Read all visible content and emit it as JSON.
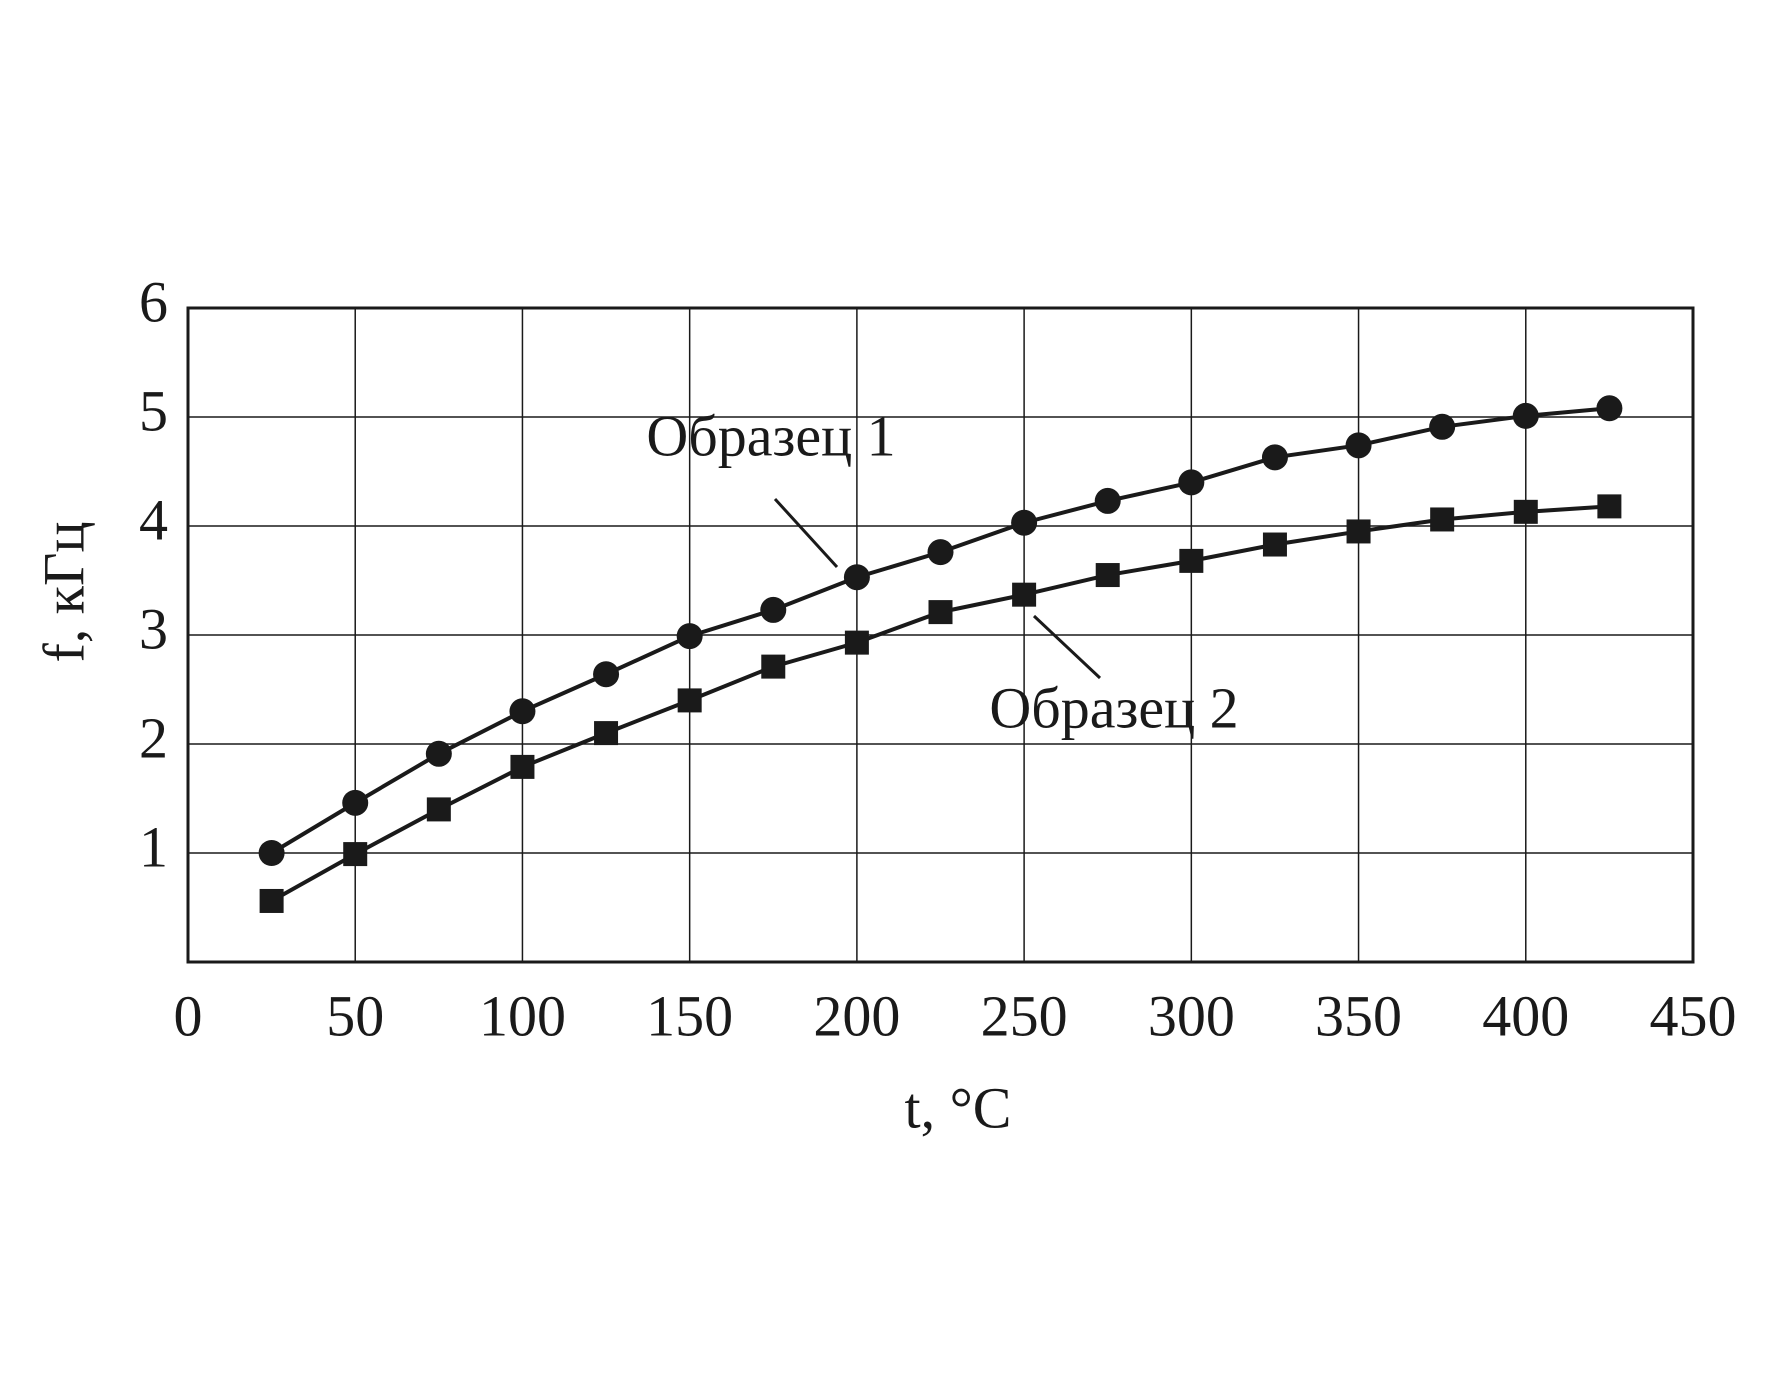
{
  "chart_data": {
    "type": "line",
    "xlabel": "t, °C",
    "ylabel": "f, кГц",
    "x": [
      25,
      50,
      75,
      100,
      125,
      150,
      175,
      200,
      225,
      250,
      275,
      300,
      325,
      350,
      375,
      400,
      425
    ],
    "series": [
      {
        "name": "Образец 1",
        "color": "#1a1a1a",
        "marker": "circle",
        "values": [
          1.0,
          1.46,
          1.91,
          2.3,
          2.64,
          2.99,
          3.23,
          3.53,
          3.76,
          4.03,
          4.23,
          4.4,
          4.63,
          4.74,
          4.91,
          5.01,
          5.08
        ]
      },
      {
        "name": "Образец 2",
        "color": "#1a1a1a",
        "marker": "square",
        "values": [
          0.56,
          0.99,
          1.4,
          1.79,
          2.1,
          2.4,
          2.71,
          2.93,
          3.21,
          3.37,
          3.55,
          3.68,
          3.83,
          3.95,
          4.06,
          4.13,
          4.18
        ]
      }
    ],
    "xlim": [
      0,
      450
    ],
    "xticks": [
      0,
      50,
      100,
      150,
      200,
      250,
      300,
      350,
      400,
      450
    ],
    "ylim": [
      0,
      6
    ],
    "yticks": [
      1,
      2,
      3,
      4,
      5,
      6
    ],
    "grid": true
  }
}
